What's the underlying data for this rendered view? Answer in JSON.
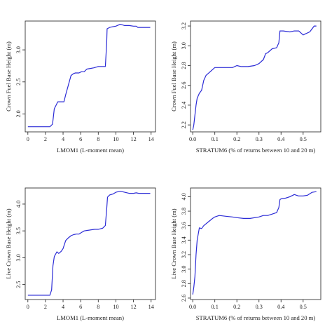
{
  "chart_data": [
    {
      "type": "line",
      "xlabel": "LMOM1 (L-moment mean)",
      "ylabel": "Crown Fuel Base Height (m)",
      "xlim": [
        -0.3,
        14.5
      ],
      "ylim": [
        1.72,
        3.45
      ],
      "xticks": [
        "0",
        "2",
        "4",
        "6",
        "8",
        "10",
        "12",
        "14"
      ],
      "yticks": [
        "2.0",
        "2.5",
        "3.0"
      ],
      "series": [
        {
          "color": "#2b2bd6",
          "x": [
            0,
            1,
            2,
            2.5,
            2.8,
            3.0,
            3.4,
            3.6,
            4.1,
            4.3,
            4.6,
            4.9,
            5.2,
            5.4,
            5.8,
            6.1,
            6.4,
            6.7,
            7.1,
            7.5,
            8.0,
            8.5,
            8.8,
            8.95,
            9.0,
            9.3,
            9.6,
            10.0,
            10.5,
            11.0,
            11.5,
            12.0,
            12.3,
            12.5,
            13.0,
            13.5,
            13.9
          ],
          "y": [
            1.8,
            1.8,
            1.8,
            1.8,
            1.84,
            2.08,
            2.19,
            2.19,
            2.19,
            2.3,
            2.45,
            2.6,
            2.63,
            2.64,
            2.64,
            2.66,
            2.66,
            2.7,
            2.71,
            2.72,
            2.74,
            2.74,
            2.74,
            3.1,
            3.33,
            3.35,
            3.36,
            3.37,
            3.4,
            3.38,
            3.38,
            3.37,
            3.37,
            3.35,
            3.35,
            3.35,
            3.35
          ]
        }
      ]
    },
    {
      "type": "line",
      "xlabel": "STRATUM6 (% of returns between 10 and 20 m)",
      "ylabel": "Crown Fuel Base Height (m)",
      "xlim": [
        -0.01,
        0.58
      ],
      "ylim": [
        2.13,
        3.25
      ],
      "xticks": [
        "0.0",
        "0.1",
        "0.2",
        "0.3",
        "0.4",
        "0.5"
      ],
      "yticks": [
        "2.2",
        "2.4",
        "2.6",
        "2.8",
        "3.0",
        "3.2"
      ],
      "series": [
        {
          "color": "#2b2bd6",
          "x": [
            0.0,
            0.005,
            0.01,
            0.015,
            0.02,
            0.03,
            0.04,
            0.05,
            0.06,
            0.08,
            0.1,
            0.12,
            0.15,
            0.18,
            0.2,
            0.22,
            0.25,
            0.28,
            0.3,
            0.32,
            0.33,
            0.34,
            0.36,
            0.38,
            0.39,
            0.395,
            0.41,
            0.44,
            0.46,
            0.48,
            0.5,
            0.51,
            0.53,
            0.55,
            0.56
          ],
          "y": [
            2.15,
            2.2,
            2.3,
            2.4,
            2.47,
            2.52,
            2.55,
            2.65,
            2.7,
            2.74,
            2.78,
            2.78,
            2.78,
            2.78,
            2.8,
            2.79,
            2.79,
            2.8,
            2.82,
            2.86,
            2.92,
            2.93,
            2.97,
            2.98,
            3.03,
            3.15,
            3.15,
            3.14,
            3.15,
            3.15,
            3.11,
            3.12,
            3.14,
            3.2,
            3.2
          ]
        }
      ]
    },
    {
      "type": "line",
      "xlabel": "LMOM1 (L-moment mean)",
      "ylabel": "Live Crown Base Height (m)",
      "xlim": [
        -0.3,
        14.5
      ],
      "ylim": [
        2.22,
        4.3
      ],
      "xticks": [
        "0",
        "2",
        "4",
        "6",
        "8",
        "10",
        "12",
        "14"
      ],
      "yticks": [
        "2.5",
        "3.0",
        "3.5",
        "4.0"
      ],
      "series": [
        {
          "color": "#2b2bd6",
          "x": [
            0,
            1,
            2,
            2.5,
            2.7,
            2.85,
            3.0,
            3.3,
            3.5,
            3.8,
            4.0,
            4.3,
            4.6,
            4.9,
            5.2,
            5.5,
            5.8,
            6.1,
            6.4,
            6.8,
            7.2,
            7.6,
            8.0,
            8.5,
            8.8,
            8.95,
            9.05,
            9.3,
            9.7,
            10.0,
            10.5,
            11.0,
            11.5,
            12.0,
            12.3,
            12.6,
            13.0,
            13.5,
            13.9
          ],
          "y": [
            2.3,
            2.3,
            2.3,
            2.3,
            2.4,
            2.85,
            3.02,
            3.11,
            3.08,
            3.12,
            3.17,
            3.32,
            3.37,
            3.41,
            3.43,
            3.44,
            3.44,
            3.47,
            3.5,
            3.51,
            3.52,
            3.53,
            3.53,
            3.55,
            3.6,
            3.9,
            4.13,
            4.17,
            4.19,
            4.22,
            4.24,
            4.22,
            4.2,
            4.2,
            4.21,
            4.2,
            4.2,
            4.2,
            4.2
          ]
        }
      ]
    },
    {
      "type": "line",
      "xlabel": "STRATUM6 (% of returns between 10 and 20 m)",
      "ylabel": "Live Crown Base Height (m)",
      "xlim": [
        -0.01,
        0.58
      ],
      "ylim": [
        2.58,
        4.12
      ],
      "xticks": [
        "0.0",
        "0.1",
        "0.2",
        "0.3",
        "0.4",
        "0.5"
      ],
      "yticks": [
        "2.6",
        "2.8",
        "3.0",
        "3.2",
        "3.4",
        "3.6",
        "3.8",
        "4.0"
      ],
      "series": [
        {
          "color": "#2b2bd6",
          "x": [
            0.0,
            0.005,
            0.01,
            0.015,
            0.02,
            0.03,
            0.04,
            0.05,
            0.07,
            0.09,
            0.1,
            0.12,
            0.15,
            0.18,
            0.2,
            0.23,
            0.26,
            0.3,
            0.32,
            0.34,
            0.36,
            0.38,
            0.39,
            0.395,
            0.4,
            0.42,
            0.44,
            0.46,
            0.48,
            0.5,
            0.52,
            0.54,
            0.56
          ],
          "y": [
            2.65,
            2.75,
            2.9,
            3.2,
            3.4,
            3.57,
            3.56,
            3.6,
            3.65,
            3.7,
            3.72,
            3.74,
            3.73,
            3.72,
            3.71,
            3.7,
            3.7,
            3.72,
            3.74,
            3.74,
            3.76,
            3.78,
            3.85,
            3.96,
            3.97,
            3.98,
            4.0,
            4.03,
            4.01,
            4.01,
            4.02,
            4.06,
            4.07
          ]
        }
      ]
    }
  ]
}
